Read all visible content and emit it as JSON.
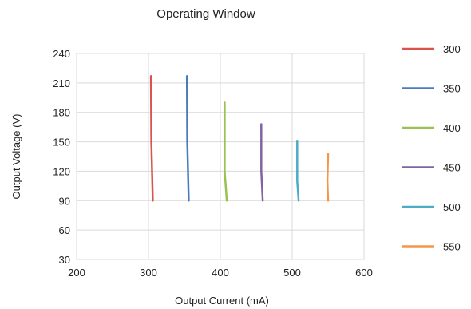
{
  "chart_data": {
    "type": "line",
    "title": "Operating Window",
    "xlabel": "Output Current (mA)",
    "ylabel": "Output Voltage (V)",
    "xlim": [
      200,
      600
    ],
    "ylim": [
      30,
      240
    ],
    "xticks": [
      200,
      300,
      400,
      500,
      600
    ],
    "yticks": [
      30,
      60,
      90,
      120,
      150,
      180,
      210,
      240
    ],
    "grid": true,
    "legend_position": "right",
    "series": [
      {
        "name": "300",
        "color": "#d9534f",
        "x": [
          306,
          304,
          303.5
        ],
        "y": [
          90,
          150,
          217
        ]
      },
      {
        "name": "350",
        "color": "#4a7bbd",
        "x": [
          356,
          354,
          353.5
        ],
        "y": [
          90,
          150,
          217
        ]
      },
      {
        "name": "400",
        "color": "#9ac153",
        "x": [
          409,
          406,
          406
        ],
        "y": [
          90,
          120,
          190
        ]
      },
      {
        "name": "450",
        "color": "#8064a2",
        "x": [
          459,
          457,
          457
        ],
        "y": [
          90,
          120,
          168
        ]
      },
      {
        "name": "500",
        "color": "#4bacc6",
        "x": [
          509,
          507,
          507
        ],
        "y": [
          90,
          110,
          151
        ]
      },
      {
        "name": "550",
        "color": "#f79646",
        "x": [
          550,
          549,
          550
        ],
        "y": [
          90,
          110,
          138
        ]
      }
    ]
  }
}
